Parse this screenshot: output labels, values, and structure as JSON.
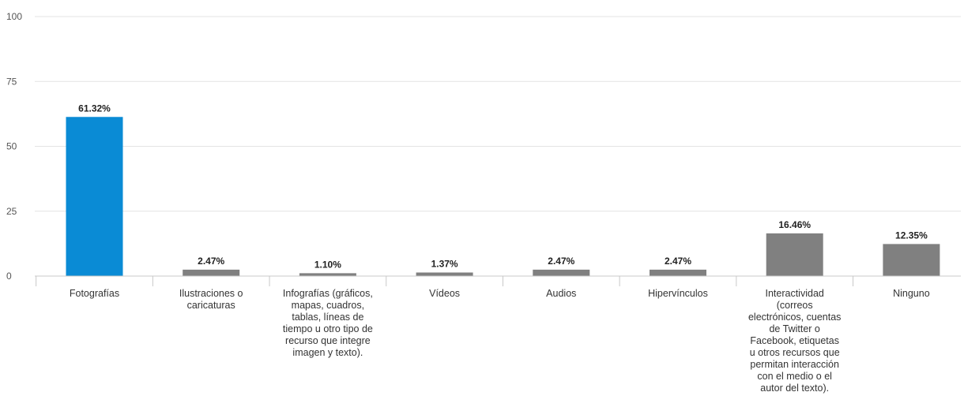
{
  "chart_data": {
    "type": "bar",
    "categories": [
      "Fotografías",
      "Ilustraciones o caricaturas",
      "Infografías (gráficos, mapas, cuadros, tablas, líneas de tiempo u otro tipo de recurso que integre imagen y texto).",
      "Vídeos",
      "Audios",
      "Hipervínculos",
      "Interactividad (correos electrónicos, cuentas de Twitter o Facebook, etiquetas u otros recursos que permitan interacción con el medio o el autor del texto).",
      "Ninguno"
    ],
    "values": [
      61.32,
      2.47,
      1.1,
      1.37,
      2.47,
      2.47,
      16.46,
      12.35
    ],
    "value_labels": [
      "61.32%",
      "2.47%",
      "1.10%",
      "1.37%",
      "2.47%",
      "2.47%",
      "16.46%",
      "12.35%"
    ],
    "highlight_index": 0,
    "highlight_color": "#0a8bd5",
    "bar_color": "#808080",
    "gridline_color": "#e3e3e3",
    "axis_color": "#c8c8c8",
    "ylim": [
      0,
      100
    ],
    "yticks": [
      0,
      25,
      50,
      75,
      100
    ],
    "ytick_labels": [
      "0",
      "25",
      "50",
      "75",
      "100"
    ],
    "grid": true,
    "legend": "none",
    "title": "",
    "xlabel": "",
    "ylabel": ""
  }
}
